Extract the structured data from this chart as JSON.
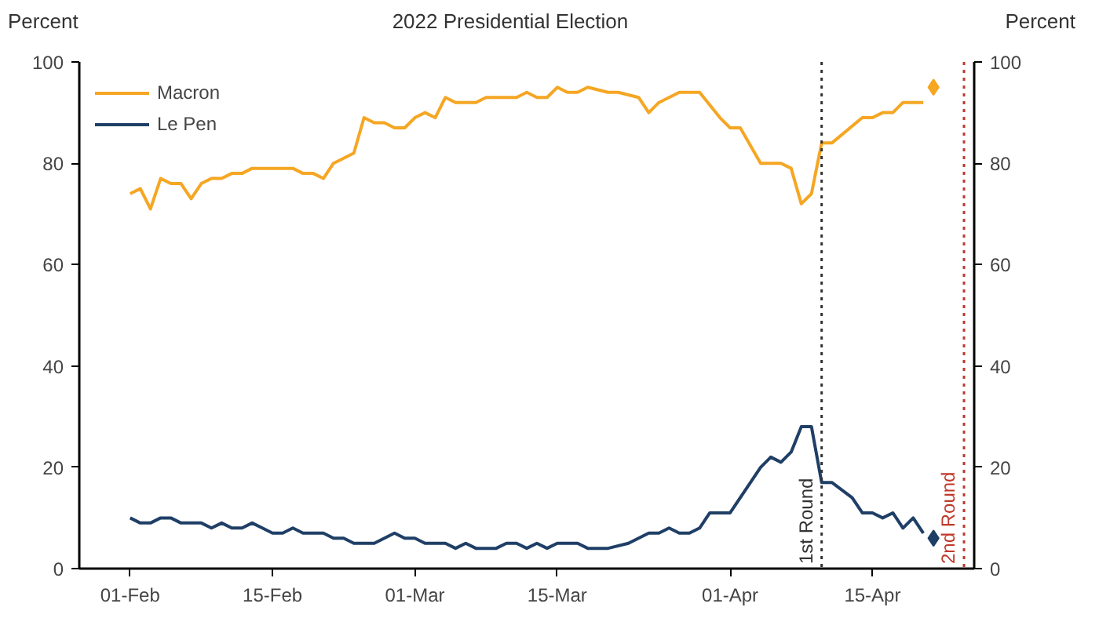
{
  "chart_data": {
    "type": "line",
    "title": "2022 Presidential Election",
    "ylabel": "Percent",
    "y2label": "Percent",
    "xlim": [
      "2022-01-27",
      "2022-04-25"
    ],
    "xticks": [
      {
        "value": "2022-02-01",
        "label": "01-Feb"
      },
      {
        "value": "2022-02-15",
        "label": "15-Feb"
      },
      {
        "value": "2022-03-01",
        "label": "01-Mar"
      },
      {
        "value": "2022-03-15",
        "label": "15-Mar"
      },
      {
        "value": "2022-04-01",
        "label": "01-Apr"
      },
      {
        "value": "2022-04-15",
        "label": "15-Apr"
      }
    ],
    "ylim": [
      0,
      100
    ],
    "yticks": [
      0,
      20,
      40,
      60,
      80,
      100
    ],
    "y2lim": [
      0,
      100
    ],
    "y2ticks": [
      0,
      20,
      40,
      60,
      80,
      100
    ],
    "grid": false,
    "legend": "top left",
    "line_style": "solid",
    "marker": "none",
    "series": [
      {
        "name": "Macron",
        "color": "#f5a623",
        "x": [
          "2022-02-01",
          "2022-02-02",
          "2022-02-03",
          "2022-02-04",
          "2022-02-05",
          "2022-02-06",
          "2022-02-07",
          "2022-02-08",
          "2022-02-09",
          "2022-02-10",
          "2022-02-11",
          "2022-02-12",
          "2022-02-13",
          "2022-02-17",
          "2022-02-18",
          "2022-02-19",
          "2022-02-20",
          "2022-02-21",
          "2022-02-22",
          "2022-02-23",
          "2022-02-24",
          "2022-02-25",
          "2022-02-26",
          "2022-02-27",
          "2022-02-28",
          "2022-03-01",
          "2022-03-02",
          "2022-03-03",
          "2022-03-04",
          "2022-03-05",
          "2022-03-07",
          "2022-03-08",
          "2022-03-11",
          "2022-03-12",
          "2022-03-13",
          "2022-03-14",
          "2022-03-15",
          "2022-03-16",
          "2022-03-17",
          "2022-03-18",
          "2022-03-20",
          "2022-03-21",
          "2022-03-23",
          "2022-03-24",
          "2022-03-25",
          "2022-03-27",
          "2022-03-29",
          "2022-03-31",
          "2022-04-01",
          "2022-04-02",
          "2022-04-04",
          "2022-04-06",
          "2022-04-07",
          "2022-04-08",
          "2022-04-09",
          "2022-04-10",
          "2022-04-11",
          "2022-04-14",
          "2022-04-15",
          "2022-04-16",
          "2022-04-17",
          "2022-04-18",
          "2022-04-20"
        ],
        "values": [
          74,
          75,
          71,
          77,
          76,
          76,
          73,
          76,
          77,
          77,
          78,
          78,
          79,
          79,
          78,
          78,
          77,
          80,
          81,
          82,
          89,
          88,
          88,
          87,
          87,
          89,
          90,
          89,
          93,
          92,
          92,
          93,
          93,
          94,
          93,
          93,
          95,
          94,
          94,
          95,
          94,
          94,
          93,
          90,
          92,
          94,
          94,
          89,
          87,
          87,
          80,
          80,
          79,
          72,
          74,
          84,
          84,
          89,
          89,
          90,
          90,
          92,
          92
        ]
      },
      {
        "name": "Le Pen",
        "color": "#1f3f66",
        "x": [
          "2022-02-01",
          "2022-02-02",
          "2022-02-03",
          "2022-02-04",
          "2022-02-05",
          "2022-02-06",
          "2022-02-07",
          "2022-02-08",
          "2022-02-09",
          "2022-02-10",
          "2022-02-11",
          "2022-02-12",
          "2022-02-13",
          "2022-02-14",
          "2022-02-15",
          "2022-02-16",
          "2022-02-17",
          "2022-02-18",
          "2022-02-19",
          "2022-02-20",
          "2022-02-21",
          "2022-02-22",
          "2022-02-23",
          "2022-02-24",
          "2022-02-25",
          "2022-02-27",
          "2022-02-28",
          "2022-03-01",
          "2022-03-02",
          "2022-03-03",
          "2022-03-04",
          "2022-03-05",
          "2022-03-06",
          "2022-03-07",
          "2022-03-08",
          "2022-03-09",
          "2022-03-10",
          "2022-03-11",
          "2022-03-12",
          "2022-03-13",
          "2022-03-14",
          "2022-03-15",
          "2022-03-16",
          "2022-03-17",
          "2022-03-18",
          "2022-03-19",
          "2022-03-20",
          "2022-03-22",
          "2022-03-24",
          "2022-03-25",
          "2022-03-26",
          "2022-03-27",
          "2022-03-28",
          "2022-03-29",
          "2022-03-30",
          "2022-03-31",
          "2022-04-01",
          "2022-04-04",
          "2022-04-05",
          "2022-04-06",
          "2022-04-07",
          "2022-04-08",
          "2022-04-09",
          "2022-04-10",
          "2022-04-11",
          "2022-04-13",
          "2022-04-14",
          "2022-04-15",
          "2022-04-16",
          "2022-04-17",
          "2022-04-18",
          "2022-04-19",
          "2022-04-20"
        ],
        "values": [
          10,
          9,
          9,
          10,
          10,
          9,
          9,
          9,
          8,
          9,
          8,
          8,
          9,
          8,
          7,
          7,
          8,
          7,
          7,
          7,
          6,
          6,
          5,
          5,
          5,
          7,
          6,
          6,
          5,
          5,
          5,
          4,
          5,
          4,
          4,
          4,
          5,
          5,
          4,
          5,
          4,
          5,
          5,
          5,
          4,
          4,
          4,
          5,
          7,
          7,
          8,
          7,
          7,
          8,
          11,
          11,
          11,
          20,
          22,
          21,
          23,
          28,
          28,
          17,
          17,
          14,
          11,
          11,
          10,
          11,
          8,
          10,
          7
        ]
      },
      {
        "type": "scatter",
        "marker": "diamond",
        "color": "#f5a623",
        "x": [
          "2022-04-21"
        ],
        "values": [
          95
        ]
      },
      {
        "type": "scatter",
        "marker": "diamond",
        "color": "#1f3f66",
        "x": [
          "2022-04-21"
        ],
        "values": [
          6
        ]
      }
    ],
    "ref_lines": [
      {
        "axis": "x",
        "value": "2022-04-10",
        "label": "1st Round",
        "color": "#333333",
        "line_style": "dotted"
      },
      {
        "axis": "x",
        "value": "2022-04-24",
        "label": "2nd Round",
        "color": "#c0392b",
        "line_style": "dotted"
      }
    ]
  }
}
